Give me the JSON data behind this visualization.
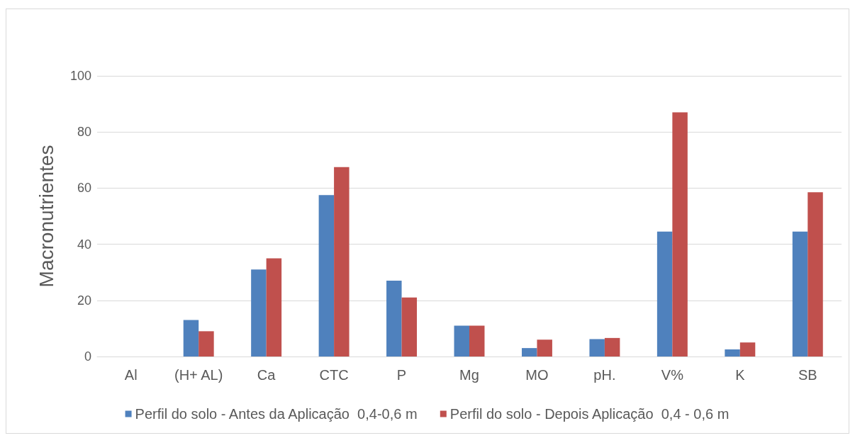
{
  "chart_data": {
    "type": "bar",
    "ylabel": "Macronutrientes",
    "categories": [
      "Al",
      "(H+ AL)",
      "Ca",
      "CTC",
      "P",
      "Mg",
      "MO",
      "pH.",
      "V%",
      "K",
      "SB"
    ],
    "series": [
      {
        "name": "Perfil do solo - Antes da Aplicação  0,4-0,6 m",
        "color": "#4f81bd",
        "values": [
          0,
          13,
          31,
          57.5,
          27,
          11,
          3,
          6.2,
          44.5,
          2.5,
          44.5
        ]
      },
      {
        "name": "Perfil do solo - Depois Aplicação  0,4 - 0,6 m",
        "color": "#c0504d",
        "values": [
          0,
          9,
          35,
          67.5,
          21,
          11,
          6,
          6.6,
          87,
          5,
          58.5
        ]
      }
    ],
    "ylim": [
      0,
      100
    ],
    "yticks": [
      0,
      20,
      40,
      60,
      80,
      100
    ],
    "grid": "y",
    "legend": "bottom"
  }
}
